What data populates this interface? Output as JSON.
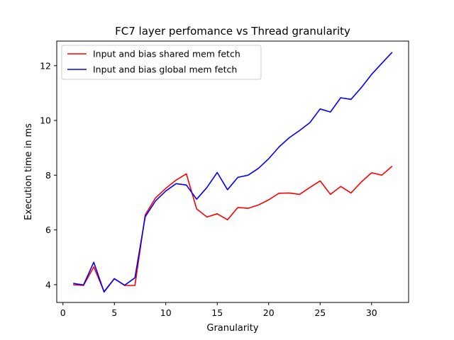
{
  "chart_data": {
    "type": "line",
    "title": "FC7 layer perfomance vs Thread granularity",
    "xlabel": "Granularity",
    "ylabel": "Execution time in ms",
    "xlim": [
      -0.6,
      33.6
    ],
    "ylim": [
      3.35,
      12.9
    ],
    "xticks": [
      0,
      5,
      10,
      15,
      20,
      25,
      30
    ],
    "yticks": [
      4,
      6,
      8,
      10,
      12
    ],
    "grid": false,
    "legend_position": "upper-left",
    "x": [
      1,
      2,
      3,
      4,
      5,
      6,
      7,
      8,
      9,
      10,
      11,
      12,
      13,
      14,
      15,
      16,
      17,
      18,
      19,
      20,
      21,
      22,
      23,
      24,
      25,
      26,
      27,
      28,
      29,
      30,
      31,
      32
    ],
    "series": [
      {
        "name": "Input and bias shared mem fetch",
        "color": "#ff0000",
        "values": [
          4.0,
          3.97,
          4.65,
          3.75,
          4.22,
          3.97,
          3.97,
          6.55,
          7.17,
          7.52,
          7.82,
          8.05,
          6.77,
          6.47,
          6.59,
          6.37,
          6.82,
          6.79,
          6.91,
          7.1,
          7.34,
          7.35,
          7.3,
          7.55,
          7.79,
          7.3,
          7.59,
          7.35,
          7.75,
          8.09,
          8.0,
          8.33
        ]
      },
      {
        "name": "Input and bias global mem fetch",
        "color": "#0000ff",
        "values": [
          4.05,
          3.99,
          4.82,
          3.73,
          4.22,
          3.98,
          4.25,
          6.48,
          7.06,
          7.42,
          7.69,
          7.64,
          7.12,
          7.55,
          8.1,
          7.47,
          7.92,
          8.0,
          8.25,
          8.6,
          9.03,
          9.37,
          9.63,
          9.92,
          10.42,
          10.31,
          10.83,
          10.77,
          11.2,
          11.68,
          12.09,
          12.49
        ]
      }
    ]
  }
}
